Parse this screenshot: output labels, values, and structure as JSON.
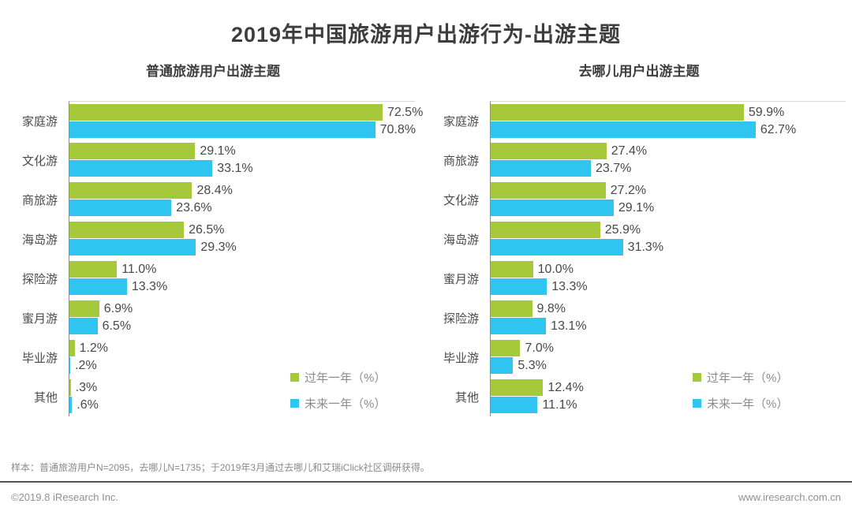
{
  "page": {
    "title": "2019年中国旅游用户出游行为-出游主题",
    "footer_note": "样本：普通旅游用户N=2095，去哪儿N=1735；于2019年3月通过去哪儿和艾瑞iClick社区调研获得。",
    "copyright": "©2019.8 iResearch Inc.",
    "website": "www.iresearch.com.cn"
  },
  "colors": {
    "title_text": "#3d3d3d",
    "label_text": "#4a4a4a",
    "legend_text": "#8c8c8c",
    "footer_text": "#8a8a8a",
    "past_year_green": "#a6c93c",
    "future_year_blue": "#30c5f0",
    "axis_line": "#8c8c8c",
    "plot_top_border": "#d9d9d9",
    "divider": "#555555"
  },
  "chart_data": [
    {
      "type": "bar",
      "orientation": "horizontal",
      "title": "普通旅游用户出游主题",
      "categories": [
        "家庭游",
        "文化游",
        "商旅游",
        "海岛游",
        "探险游",
        "蜜月游",
        "毕业游",
        "其他"
      ],
      "series": [
        {
          "name": "过年一年（%）",
          "color": "#a6c93c",
          "values": [
            72.5,
            29.1,
            28.4,
            26.5,
            11.0,
            6.9,
            1.2,
            0.3
          ],
          "labels": [
            "72.5%",
            "29.1%",
            "28.4%",
            "26.5%",
            "11.0%",
            "6.9%",
            "1.2%",
            ".3%"
          ]
        },
        {
          "name": "未来一年（%）",
          "color": "#30c5f0",
          "values": [
            70.8,
            33.1,
            23.6,
            29.3,
            13.3,
            6.5,
            0.2,
            0.6
          ],
          "labels": [
            "70.8%",
            "33.1%",
            "23.6%",
            "29.3%",
            "13.3%",
            "6.5%",
            ".2%",
            ".6%"
          ]
        }
      ],
      "xlim": [
        0,
        80
      ],
      "grid": false,
      "legend_position": "inside-bottom-right"
    },
    {
      "type": "bar",
      "orientation": "horizontal",
      "title": "去哪儿用户出游主题",
      "categories": [
        "家庭游",
        "商旅游",
        "文化游",
        "海岛游",
        "蜜月游",
        "探险游",
        "毕业游",
        "其他"
      ],
      "series": [
        {
          "name": "过年一年（%）",
          "color": "#a6c93c",
          "values": [
            59.9,
            27.4,
            27.2,
            25.9,
            10.0,
            9.8,
            7.0,
            12.4
          ],
          "labels": [
            "59.9%",
            "27.4%",
            "27.2%",
            "25.9%",
            "10.0%",
            "9.8%",
            "7.0%",
            "12.4%"
          ]
        },
        {
          "name": "未来一年（%）",
          "color": "#30c5f0",
          "values": [
            62.7,
            23.7,
            29.1,
            31.3,
            13.3,
            13.1,
            5.3,
            11.1
          ],
          "labels": [
            "62.7%",
            "23.7%",
            "29.1%",
            "31.3%",
            "13.3%",
            "13.1%",
            "5.3%",
            "11.1%"
          ]
        }
      ],
      "xlim": [
        0,
        84
      ],
      "grid": false,
      "legend_position": "inside-bottom-right"
    }
  ]
}
